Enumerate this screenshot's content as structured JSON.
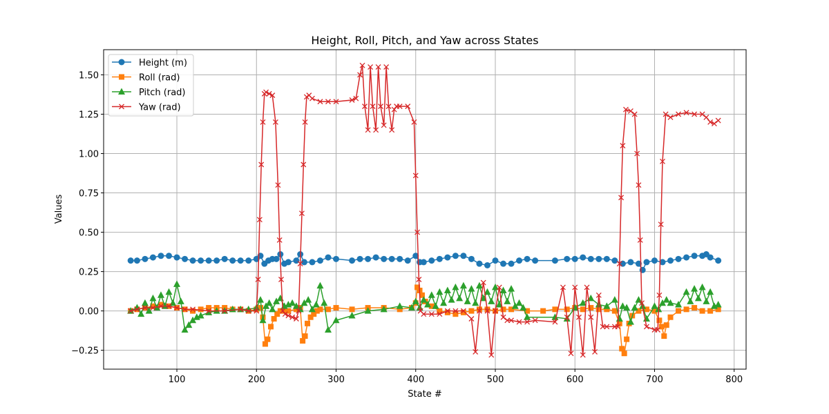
{
  "chart_data": {
    "type": "line",
    "title": "Height, Roll, Pitch, and Yaw across States",
    "xlabel": "State #",
    "ylabel": "Values",
    "xlim": [
      8,
      815
    ],
    "ylim": [
      -0.37,
      1.66
    ],
    "xticks": [
      100,
      200,
      300,
      400,
      500,
      600,
      700,
      800
    ],
    "xtick_labels": [
      "100",
      "200",
      "300",
      "400",
      "500",
      "600",
      "700",
      "800"
    ],
    "yticks": [
      -0.25,
      0.0,
      0.25,
      0.5,
      0.75,
      1.0,
      1.25,
      1.5
    ],
    "ytick_labels": [
      "−0.25",
      "0.00",
      "0.25",
      "0.50",
      "0.75",
      "1.00",
      "1.25",
      "1.50"
    ],
    "grid": true,
    "legend_position": "top-left",
    "series": [
      {
        "name": "Height (m)",
        "color": "#1f77b4",
        "marker": "circle",
        "x": [
          42,
          50,
          60,
          70,
          80,
          90,
          100,
          110,
          120,
          130,
          140,
          150,
          160,
          170,
          180,
          190,
          200,
          205,
          210,
          215,
          220,
          225,
          230,
          235,
          240,
          250,
          255,
          260,
          270,
          280,
          290,
          300,
          320,
          330,
          340,
          350,
          360,
          370,
          380,
          390,
          400,
          405,
          410,
          420,
          430,
          440,
          450,
          460,
          470,
          480,
          490,
          500,
          510,
          520,
          530,
          540,
          550,
          575,
          590,
          600,
          610,
          620,
          630,
          640,
          650,
          660,
          670,
          680,
          685,
          690,
          700,
          710,
          720,
          730,
          740,
          750,
          760,
          765,
          770,
          780
        ],
        "values": [
          0.32,
          0.32,
          0.33,
          0.34,
          0.35,
          0.35,
          0.34,
          0.33,
          0.32,
          0.32,
          0.32,
          0.32,
          0.33,
          0.32,
          0.32,
          0.32,
          0.33,
          0.35,
          0.3,
          0.32,
          0.33,
          0.33,
          0.36,
          0.3,
          0.31,
          0.32,
          0.36,
          0.31,
          0.31,
          0.32,
          0.34,
          0.33,
          0.32,
          0.33,
          0.33,
          0.34,
          0.33,
          0.33,
          0.33,
          0.32,
          0.35,
          0.31,
          0.31,
          0.32,
          0.33,
          0.34,
          0.35,
          0.35,
          0.33,
          0.3,
          0.29,
          0.32,
          0.3,
          0.3,
          0.32,
          0.33,
          0.32,
          0.32,
          0.33,
          0.33,
          0.34,
          0.33,
          0.33,
          0.33,
          0.32,
          0.3,
          0.31,
          0.3,
          0.26,
          0.31,
          0.32,
          0.31,
          0.32,
          0.33,
          0.34,
          0.35,
          0.35,
          0.36,
          0.34,
          0.32
        ]
      },
      {
        "name": "Roll (rad)",
        "color": "#ff7f0e",
        "marker": "square",
        "x": [
          42,
          50,
          60,
          70,
          80,
          90,
          100,
          110,
          120,
          130,
          140,
          150,
          160,
          170,
          180,
          190,
          200,
          205,
          208,
          211,
          214,
          218,
          222,
          226,
          230,
          235,
          240,
          250,
          255,
          258,
          261,
          264,
          268,
          272,
          276,
          280,
          290,
          300,
          320,
          340,
          360,
          380,
          395,
          400,
          402,
          405,
          408,
          412,
          420,
          430,
          440,
          450,
          460,
          470,
          480,
          490,
          500,
          510,
          520,
          540,
          560,
          575,
          590,
          600,
          610,
          620,
          630,
          640,
          650,
          656,
          659,
          662,
          665,
          668,
          672,
          680,
          690,
          700,
          706,
          709,
          712,
          715,
          720,
          730,
          740,
          750,
          760,
          770,
          780
        ],
        "values": [
          0.0,
          0.01,
          0.02,
          0.03,
          0.04,
          0.03,
          0.02,
          0.01,
          0.0,
          0.01,
          0.02,
          0.02,
          0.02,
          0.01,
          0.01,
          0.0,
          0.01,
          0.02,
          -0.04,
          -0.21,
          -0.18,
          -0.1,
          -0.05,
          -0.02,
          0.0,
          0.0,
          0.0,
          0.01,
          0.02,
          -0.19,
          -0.16,
          -0.08,
          -0.04,
          -0.02,
          0.0,
          0.01,
          0.01,
          0.02,
          0.01,
          0.02,
          0.02,
          0.01,
          0.02,
          0.05,
          0.15,
          0.13,
          0.1,
          0.06,
          0.03,
          0.0,
          -0.01,
          -0.02,
          -0.01,
          0.0,
          0.01,
          0.01,
          0.0,
          0.01,
          0.01,
          0.0,
          0.0,
          0.01,
          0.01,
          0.02,
          0.01,
          0.02,
          0.01,
          0.01,
          0.0,
          -0.08,
          -0.24,
          -0.27,
          -0.18,
          -0.08,
          -0.03,
          0.0,
          0.01,
          0.0,
          -0.06,
          -0.1,
          -0.16,
          -0.09,
          -0.04,
          0.0,
          0.01,
          0.02,
          0.0,
          0.0,
          0.01
        ]
      },
      {
        "name": "Pitch (rad)",
        "color": "#2ca02c",
        "marker": "triangle",
        "x": [
          42,
          50,
          55,
          60,
          65,
          70,
          75,
          80,
          85,
          90,
          95,
          100,
          105,
          110,
          115,
          120,
          125,
          130,
          140,
          150,
          160,
          170,
          180,
          190,
          200,
          205,
          208,
          212,
          216,
          220,
          225,
          230,
          235,
          240,
          245,
          250,
          255,
          260,
          265,
          270,
          275,
          280,
          285,
          290,
          300,
          320,
          340,
          360,
          380,
          395,
          400,
          405,
          410,
          415,
          420,
          425,
          430,
          435,
          440,
          445,
          450,
          455,
          460,
          465,
          470,
          475,
          480,
          485,
          490,
          495,
          500,
          505,
          510,
          515,
          520,
          525,
          530,
          535,
          540,
          575,
          590,
          600,
          610,
          620,
          630,
          640,
          650,
          656,
          660,
          665,
          670,
          675,
          680,
          685,
          690,
          700,
          705,
          710,
          715,
          720,
          730,
          740,
          745,
          750,
          755,
          760,
          765,
          770,
          775,
          780
        ],
        "values": [
          0.0,
          0.02,
          -0.02,
          0.05,
          0.0,
          0.08,
          0.02,
          0.1,
          0.03,
          0.12,
          0.05,
          0.17,
          0.06,
          -0.12,
          -0.09,
          -0.06,
          -0.04,
          -0.03,
          -0.01,
          0.0,
          0.0,
          0.01,
          0.01,
          0.01,
          0.02,
          0.07,
          -0.06,
          0.03,
          0.05,
          0.01,
          0.06,
          0.08,
          0.03,
          0.04,
          0.05,
          0.03,
          0.01,
          0.05,
          0.07,
          0.01,
          0.04,
          0.16,
          0.05,
          -0.12,
          -0.06,
          -0.03,
          0.0,
          0.01,
          0.03,
          0.02,
          0.06,
          0.02,
          0.07,
          0.04,
          0.1,
          0.03,
          0.12,
          0.05,
          0.13,
          0.07,
          0.15,
          0.08,
          0.16,
          0.06,
          0.14,
          0.05,
          0.16,
          0.08,
          0.12,
          0.06,
          0.15,
          0.04,
          0.13,
          0.06,
          0.14,
          0.03,
          0.05,
          0.02,
          -0.04,
          -0.04,
          -0.05,
          0.02,
          0.05,
          0.08,
          0.04,
          0.03,
          0.07,
          -0.05,
          0.03,
          0.02,
          -0.07,
          0.02,
          0.07,
          0.03,
          -0.05,
          0.03,
          0.01,
          0.05,
          0.07,
          0.05,
          0.04,
          0.12,
          0.06,
          0.14,
          0.08,
          0.15,
          0.06,
          0.12,
          0.03,
          0.04
        ]
      },
      {
        "name": "Yaw (rad)",
        "color": "#d62728",
        "marker": "x",
        "x": [
          42,
          50,
          60,
          70,
          80,
          90,
          100,
          110,
          120,
          140,
          160,
          180,
          190,
          200,
          202,
          204,
          206,
          208,
          210,
          212,
          216,
          220,
          224,
          227,
          229,
          231,
          233,
          236,
          240,
          245,
          250,
          253,
          255,
          257,
          259,
          261,
          263,
          266,
          270,
          280,
          290,
          300,
          320,
          325,
          330,
          333,
          336,
          340,
          343,
          346,
          350,
          353,
          356,
          360,
          363,
          366,
          370,
          373,
          376,
          380,
          390,
          398,
          400,
          402,
          404,
          406,
          410,
          420,
          430,
          440,
          450,
          460,
          470,
          475,
          480,
          485,
          490,
          495,
          500,
          505,
          510,
          515,
          520,
          530,
          540,
          550,
          575,
          585,
          590,
          595,
          600,
          605,
          610,
          615,
          620,
          625,
          630,
          635,
          640,
          650,
          654,
          656,
          658,
          660,
          664,
          670,
          675,
          678,
          680,
          682,
          684,
          690,
          700,
          704,
          706,
          708,
          710,
          714,
          720,
          730,
          740,
          750,
          760,
          765,
          770,
          775,
          780
        ],
        "values": [
          0.0,
          0.01,
          0.02,
          0.02,
          0.03,
          0.03,
          0.02,
          0.01,
          0.01,
          0.0,
          0.0,
          0.01,
          0.0,
          0.0,
          0.2,
          0.58,
          0.93,
          1.2,
          1.38,
          1.39,
          1.38,
          1.37,
          1.2,
          0.8,
          0.45,
          0.2,
          0.0,
          -0.02,
          -0.03,
          -0.04,
          -0.05,
          0.0,
          0.3,
          0.62,
          0.93,
          1.2,
          1.36,
          1.37,
          1.35,
          1.33,
          1.33,
          1.33,
          1.34,
          1.35,
          1.5,
          1.56,
          1.3,
          1.15,
          1.55,
          1.3,
          1.15,
          1.55,
          1.3,
          1.18,
          1.55,
          1.3,
          1.15,
          1.28,
          1.3,
          1.3,
          1.3,
          1.2,
          0.86,
          0.5,
          0.2,
          0.0,
          -0.02,
          -0.02,
          -0.02,
          0.0,
          0.0,
          0.0,
          -0.05,
          -0.26,
          0.0,
          0.18,
          0.0,
          -0.28,
          0.0,
          0.15,
          -0.04,
          -0.06,
          -0.06,
          -0.07,
          -0.07,
          -0.06,
          -0.07,
          0.15,
          -0.04,
          -0.27,
          0.15,
          -0.04,
          -0.28,
          0.15,
          -0.04,
          -0.26,
          0.1,
          -0.1,
          -0.1,
          -0.1,
          -0.1,
          0.3,
          0.72,
          1.05,
          1.28,
          1.27,
          1.25,
          1.0,
          0.8,
          0.45,
          0.05,
          -0.1,
          -0.12,
          -0.12,
          0.1,
          0.55,
          0.95,
          1.25,
          1.23,
          1.25,
          1.26,
          1.25,
          1.25,
          1.23,
          1.2,
          1.19,
          1.21
        ]
      }
    ]
  }
}
